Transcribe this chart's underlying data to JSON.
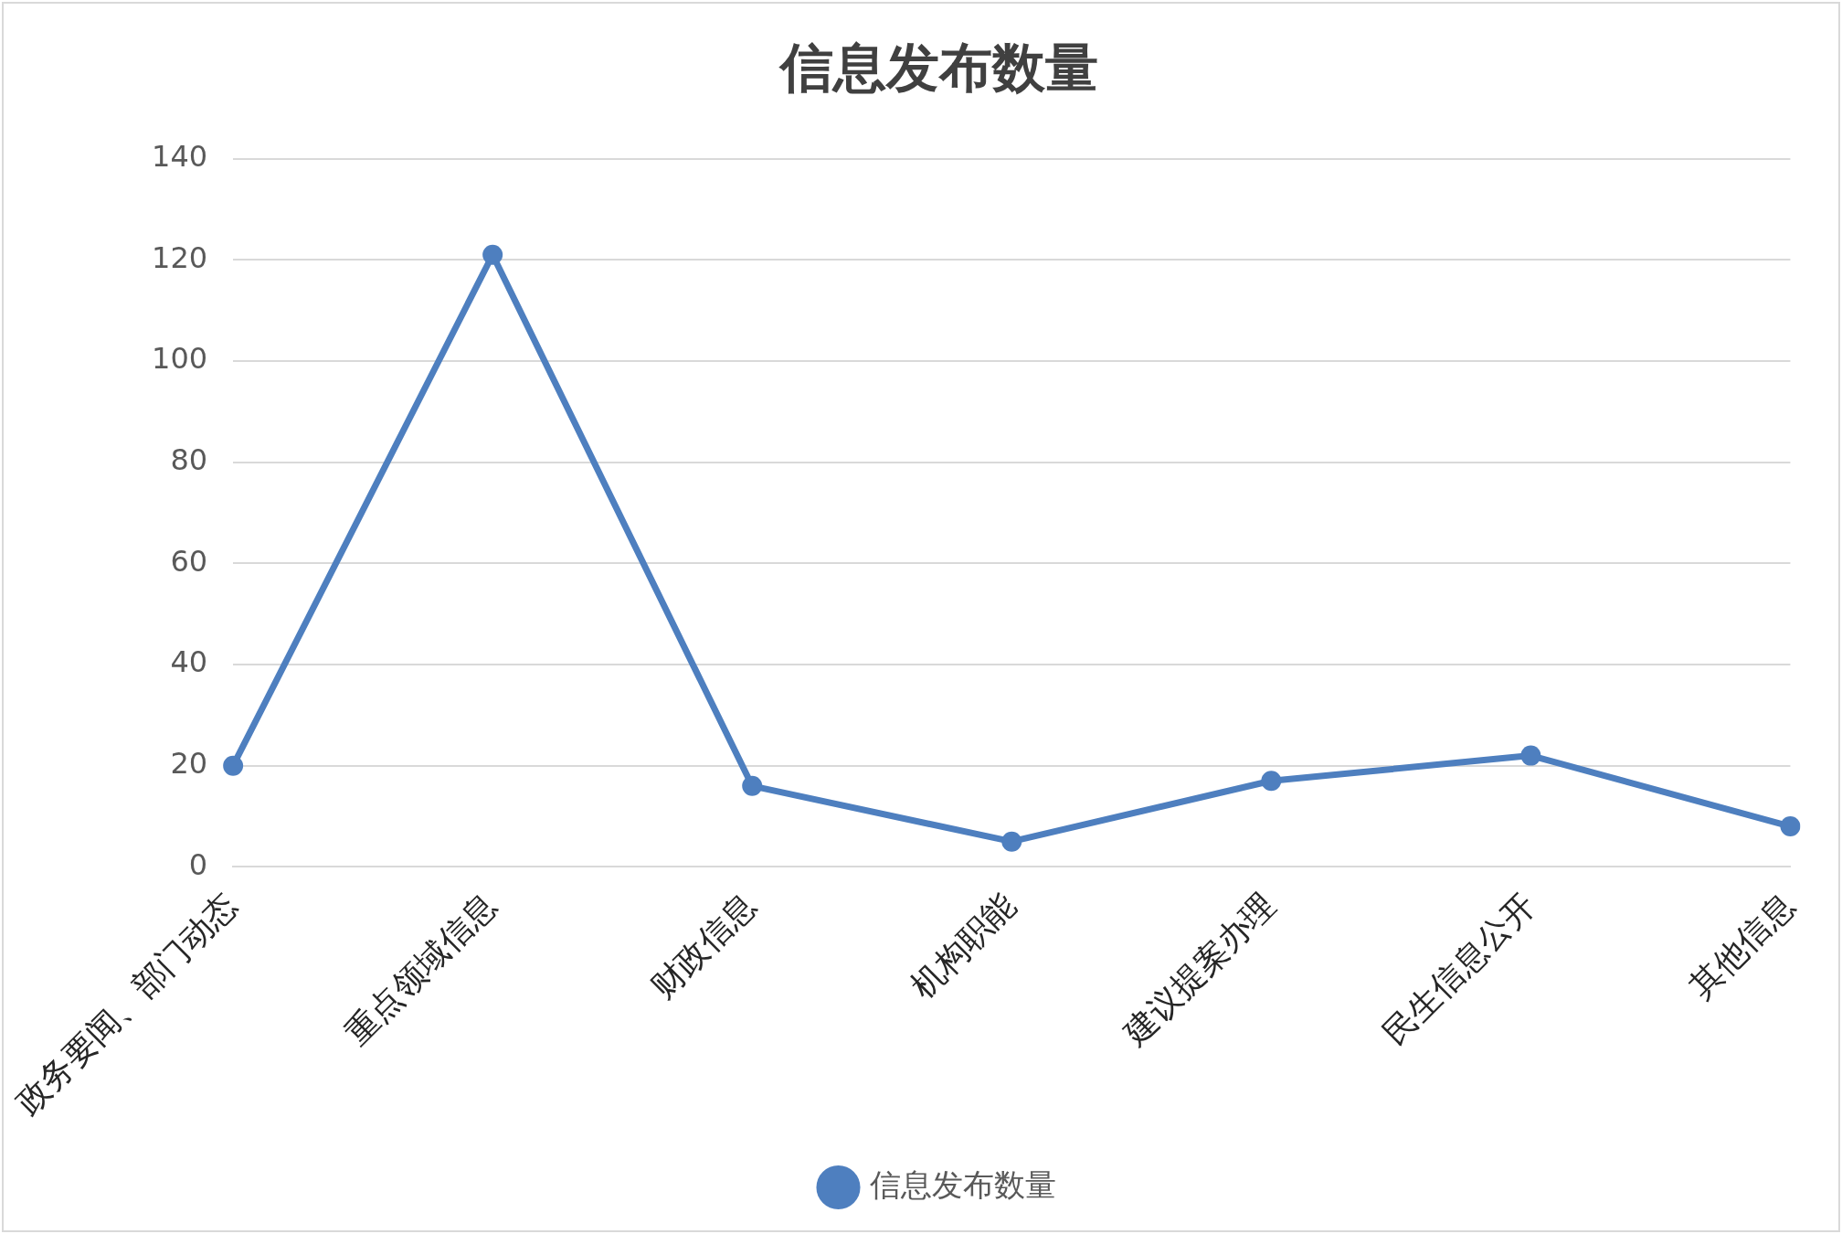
{
  "chart_data": {
    "type": "line",
    "title": "信息发布数量",
    "categories": [
      "政务要闻、部门动态",
      "重点领域信息",
      "财政信息",
      "机构职能",
      "建议提案办理",
      "民生信息公开",
      "其他信息"
    ],
    "series": [
      {
        "name": "信息发布数量",
        "color": "#4e7fbf",
        "values": [
          20,
          121,
          16,
          5,
          17,
          22,
          8
        ]
      }
    ],
    "ylim": [
      0,
      140
    ],
    "yticks": [
      0,
      20,
      40,
      60,
      80,
      100,
      120,
      140
    ],
    "grid": "y",
    "legend": "bottom",
    "marker": "circle",
    "line_style": "solid"
  }
}
